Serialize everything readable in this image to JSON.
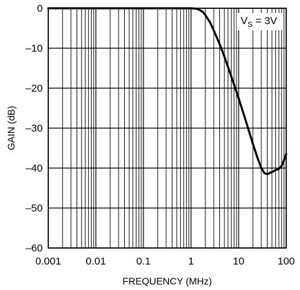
{
  "chart_data": {
    "type": "line",
    "title": "",
    "xlabel": "FREQUENCY (MHz)",
    "ylabel": "GAIN (dB)",
    "x_scale": "log",
    "xlim": [
      0.001,
      100
    ],
    "ylim": [
      -60,
      0
    ],
    "grid": true,
    "x_ticks": [
      {
        "value": 0.001,
        "label": "0.001"
      },
      {
        "value": 0.01,
        "label": "0.01"
      },
      {
        "value": 0.1,
        "label": "0.1"
      },
      {
        "value": 1,
        "label": "1"
      },
      {
        "value": 10,
        "label": "10"
      },
      {
        "value": 100,
        "label": "100"
      }
    ],
    "y_ticks": [
      {
        "value": 0,
        "label": "0"
      },
      {
        "value": -10,
        "label": "–10"
      },
      {
        "value": -20,
        "label": "–20"
      },
      {
        "value": -30,
        "label": "–30"
      },
      {
        "value": -40,
        "label": "–40"
      },
      {
        "value": -50,
        "label": "–50"
      },
      {
        "value": -60,
        "label": "–60"
      }
    ],
    "annotation": {
      "main": "V",
      "sub": "S",
      "rest": " = 3V"
    },
    "series": [
      {
        "x": [
          0.001,
          0.01,
          0.1,
          1,
          1.3,
          1.5,
          1.8,
          2,
          2.5,
          3,
          4,
          5,
          7,
          10,
          14,
          20,
          25,
          30,
          35,
          40,
          50,
          60,
          70,
          80,
          90,
          100
        ],
        "y": [
          0,
          0,
          0,
          0,
          -0.1,
          -0.4,
          -1.0,
          -1.7,
          -3.5,
          -5.5,
          -9,
          -12,
          -17,
          -22.5,
          -28,
          -34,
          -37.5,
          -40,
          -41.3,
          -41.5,
          -41,
          -40.5,
          -40.2,
          -39.5,
          -38,
          -36.5
        ]
      }
    ],
    "colors": {
      "line": "#000000",
      "grid": "#000000",
      "background": "#ffffff"
    }
  }
}
